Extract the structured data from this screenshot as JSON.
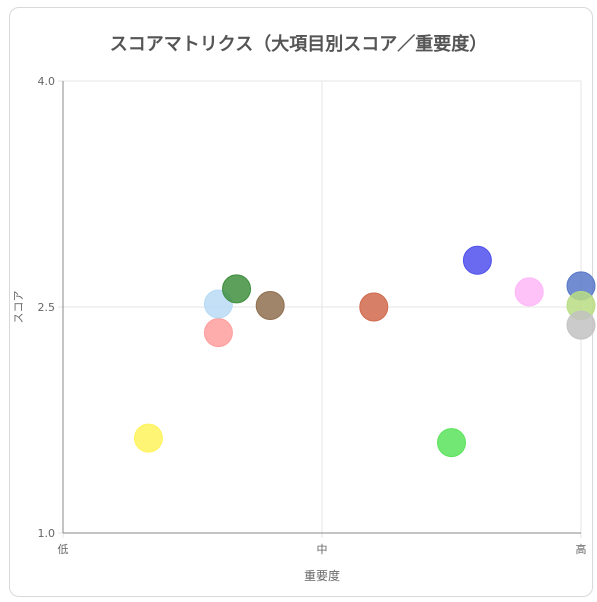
{
  "chart_data": {
    "type": "scatter",
    "title": "スコアマトリクス（大項目別スコア／重要度）",
    "xlabel": "重要度",
    "ylabel": "スコア",
    "x_tick_labels": [
      "低",
      "中",
      "高"
    ],
    "xlim": [
      0,
      2
    ],
    "ylim": [
      1.0,
      4.0
    ],
    "y_ticks": [
      "1.0",
      "2.5",
      "4.0"
    ],
    "grid": true,
    "legend": "none",
    "points": [
      {
        "x": 0.33,
        "y": 1.63,
        "color": "#fff35c"
      },
      {
        "x": 0.6,
        "y": 2.33,
        "color": "#ff9e9e"
      },
      {
        "x": 0.6,
        "y": 2.52,
        "color": "#b8dbf6"
      },
      {
        "x": 0.67,
        "y": 2.62,
        "color": "#3f8f3f"
      },
      {
        "x": 0.8,
        "y": 2.51,
        "color": "#8f7050"
      },
      {
        "x": 1.2,
        "y": 2.5,
        "color": "#d06a4c"
      },
      {
        "x": 1.5,
        "y": 1.6,
        "color": "#5be35b"
      },
      {
        "x": 1.6,
        "y": 2.81,
        "color": "#5050ee"
      },
      {
        "x": 1.8,
        "y": 2.6,
        "color": "#ffb7f7"
      },
      {
        "x": 2.0,
        "y": 2.64,
        "color": "#5878c8"
      },
      {
        "x": 2.0,
        "y": 2.51,
        "color": "#b9dd84"
      },
      {
        "x": 2.0,
        "y": 2.38,
        "color": "#c2c2c2"
      }
    ]
  }
}
